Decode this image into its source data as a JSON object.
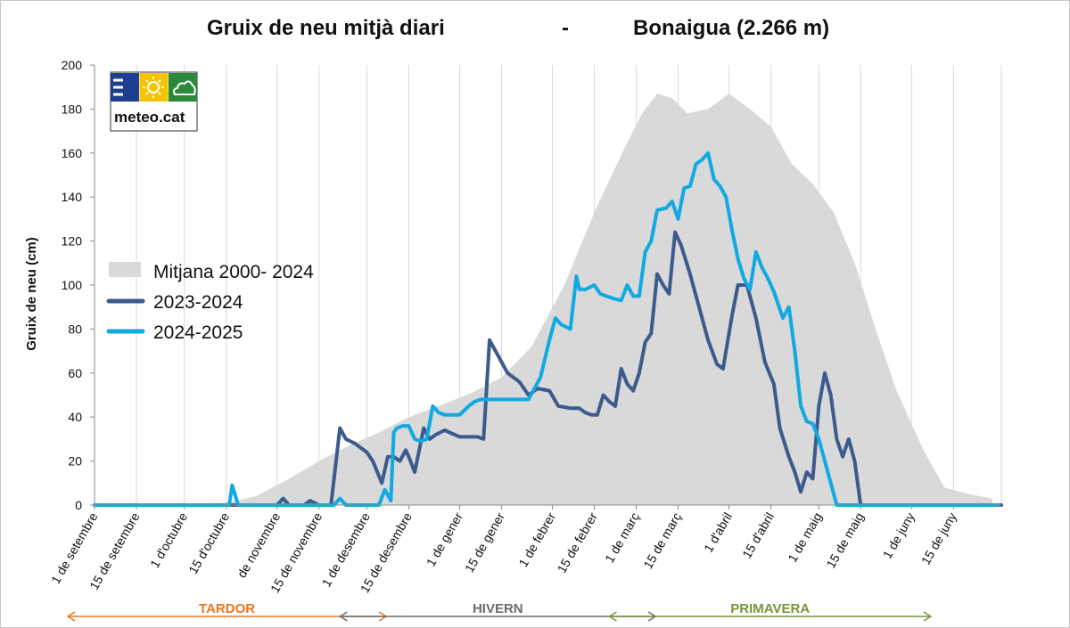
{
  "chart_data": {
    "type": "line",
    "title_left": "Gruix de neu mitjà diari",
    "title_sep": "-",
    "title_right": "Bonaigua (2.266 m)",
    "ylabel": "Gruix de neu (cm)",
    "ylim": [
      0,
      200
    ],
    "yticks": [
      "0",
      "20",
      "40",
      "60",
      "80",
      "100",
      "120",
      "140",
      "160",
      "180",
      "200"
    ],
    "x_start": "1 de setembre",
    "x_end": "30 de juny",
    "xticks": [
      "1 de setembre",
      "15 de setembre",
      "1 d'octubre",
      "15 d'octubre",
      "de novembre",
      "15 de novembre",
      "1 de desembre",
      "15 de desembre",
      "1 de gener",
      "15 de gener",
      "1 de febrer",
      "15 de febrer",
      "1 de març",
      "15 de març",
      "1 d'abril",
      "15 d'abril",
      "1 de maig",
      "15 de maig",
      "1 de juny",
      "15 de juny"
    ],
    "grid": "vertical",
    "legend_position": "left",
    "series": [
      {
        "name": "Mitjana  2000- 2024",
        "kind": "area",
        "color": "#d9d9d9",
        "x": [
          "2000-09-01",
          "2000-10-15",
          "2000-10-25",
          "2000-11-05",
          "2000-11-15",
          "2000-11-25",
          "2000-12-05",
          "2000-12-15",
          "2000-12-25",
          "2001-01-05",
          "2001-01-15",
          "2001-01-25",
          "2001-02-05",
          "2001-02-15",
          "2001-02-25",
          "2001-03-03",
          "2001-03-08",
          "2001-03-13",
          "2001-03-18",
          "2001-03-25",
          "2001-04-01",
          "2001-04-08",
          "2001-04-15",
          "2001-04-22",
          "2001-04-29",
          "2001-05-06",
          "2001-05-13",
          "2001-05-20",
          "2001-05-27",
          "2001-06-05",
          "2001-06-12",
          "2001-06-20",
          "2001-06-28"
        ],
        "values": [
          0,
          1,
          4,
          12,
          20,
          27,
          33,
          40,
          45,
          51,
          58,
          72,
          100,
          133,
          162,
          178,
          187,
          185,
          178,
          180,
          187,
          180,
          172,
          155,
          146,
          133,
          110,
          80,
          52,
          25,
          8,
          5,
          3
        ]
      },
      {
        "name": "2023-2024",
        "kind": "line",
        "color": "#3b5b8c",
        "x": [
          "2023-09-01",
          "2023-11-01",
          "2023-11-03",
          "2023-11-05",
          "2023-11-10",
          "2023-11-12",
          "2023-11-15",
          "2023-11-17",
          "2023-11-19",
          "2023-11-22",
          "2023-11-24",
          "2023-11-27",
          "2023-11-29",
          "2023-12-01",
          "2023-12-03",
          "2023-12-06",
          "2023-12-08",
          "2023-12-10",
          "2023-12-12",
          "2023-12-14",
          "2023-12-15",
          "2023-12-17",
          "2023-12-20",
          "2023-12-22",
          "2023-12-24",
          "2023-12-27",
          "2024-01-01",
          "2024-01-04",
          "2024-01-06",
          "2024-01-07",
          "2024-01-09",
          "2024-01-11",
          "2024-01-13",
          "2024-01-15",
          "2024-01-17",
          "2024-01-19",
          "2024-01-21",
          "2024-01-24",
          "2024-01-27",
          "2024-01-31",
          "2024-02-03",
          "2024-02-07",
          "2024-02-10",
          "2024-02-12",
          "2024-02-14",
          "2024-02-16",
          "2024-02-18",
          "2024-02-20",
          "2024-02-22",
          "2024-02-24",
          "2024-02-26",
          "2024-02-28",
          "2024-03-01",
          "2024-03-03",
          "2024-03-05",
          "2024-03-07",
          "2024-03-09",
          "2024-03-11",
          "2024-03-13",
          "2024-03-15",
          "2024-03-18",
          "2024-03-21",
          "2024-03-24",
          "2024-03-27",
          "2024-03-29",
          "2024-04-01",
          "2024-04-03",
          "2024-04-06",
          "2024-04-09",
          "2024-04-12",
          "2024-04-15",
          "2024-04-17",
          "2024-04-20",
          "2024-04-22",
          "2024-04-24",
          "2024-04-26",
          "2024-04-28",
          "2024-04-30",
          "2024-05-02",
          "2024-05-04",
          "2024-05-06",
          "2024-05-08",
          "2024-05-10",
          "2024-05-12",
          "2024-05-14",
          "2024-05-16",
          "2024-05-18",
          "2024-06-30"
        ],
        "values": [
          0,
          0,
          3,
          0,
          0,
          2,
          0,
          0,
          0,
          35,
          30,
          28,
          26,
          24,
          20,
          10,
          22,
          22,
          20,
          25,
          22,
          15,
          35,
          30,
          32,
          34,
          31,
          31,
          31,
          31,
          30,
          75,
          70,
          65,
          60,
          58,
          56,
          50,
          53,
          52,
          45,
          44,
          44,
          42,
          41,
          41,
          50,
          47,
          45,
          62,
          55,
          52,
          60,
          74,
          78,
          105,
          100,
          96,
          124,
          118,
          105,
          90,
          75,
          64,
          62,
          86,
          100,
          100,
          85,
          65,
          55,
          35,
          22,
          15,
          6,
          15,
          12,
          45,
          60,
          50,
          30,
          22,
          30,
          20,
          0,
          0,
          0,
          0
        ]
      },
      {
        "name": "2024-2025",
        "kind": "line",
        "color": "#11a9e2",
        "x": [
          "2024-09-01",
          "2024-10-16",
          "2024-10-17",
          "2024-10-19",
          "2024-11-20",
          "2024-11-22",
          "2024-11-24",
          "2024-12-05",
          "2024-12-07",
          "2024-12-09",
          "2024-12-10",
          "2024-12-11",
          "2024-12-13",
          "2024-12-15",
          "2024-12-17",
          "2024-12-19",
          "2024-12-21",
          "2024-12-23",
          "2024-12-25",
          "2024-12-27",
          "2024-12-30",
          "2025-01-01",
          "2025-01-04",
          "2025-01-06",
          "2025-01-08",
          "2025-01-12",
          "2025-01-15",
          "2025-01-19",
          "2025-01-24",
          "2025-01-28",
          "2025-01-31",
          "2025-02-02",
          "2025-02-04",
          "2025-02-07",
          "2025-02-09",
          "2025-02-10",
          "2025-02-12",
          "2025-02-15",
          "2025-02-17",
          "2025-02-19",
          "2025-02-21",
          "2025-02-24",
          "2025-02-26",
          "2025-02-28",
          "2025-03-02",
          "2025-03-04",
          "2025-03-06",
          "2025-03-08",
          "2025-03-11",
          "2025-03-13",
          "2025-03-15",
          "2025-03-17",
          "2025-03-19",
          "2025-03-21",
          "2025-03-23",
          "2025-03-25",
          "2025-03-27",
          "2025-03-29",
          "2025-03-31",
          "2025-04-02",
          "2025-04-04",
          "2025-04-06",
          "2025-04-08",
          "2025-04-10",
          "2025-04-12",
          "2025-04-14",
          "2025-04-16",
          "2025-04-17",
          "2025-04-19",
          "2025-04-21",
          "2025-04-23",
          "2025-04-25",
          "2025-04-27",
          "2025-04-29",
          "2025-05-01",
          "2025-05-03",
          "2025-05-05",
          "2025-05-07",
          "2025-05-09",
          "2025-05-11",
          "2025-05-13",
          "2025-05-14",
          "2025-05-16",
          "2025-06-30"
        ],
        "values": [
          0,
          0,
          9,
          0,
          0,
          3,
          0,
          0,
          7,
          2,
          33,
          35,
          36,
          36,
          30,
          29,
          30,
          45,
          42,
          41,
          41,
          41,
          45,
          47,
          48,
          48,
          48,
          48,
          48,
          58,
          75,
          85,
          82,
          80,
          104,
          98,
          98,
          100,
          96,
          95,
          94,
          93,
          100,
          95,
          95,
          115,
          120,
          134,
          135,
          138,
          130,
          144,
          145,
          155,
          157,
          160,
          148,
          145,
          140,
          125,
          112,
          103,
          98,
          115,
          108,
          103,
          97,
          93,
          85,
          90,
          70,
          45,
          38,
          37,
          30,
          20,
          10,
          0,
          0,
          0,
          0,
          0,
          0,
          0
        ]
      }
    ],
    "seasons": [
      {
        "label": "TARDOR",
        "color": "#e9751f",
        "from": "2000-09-01",
        "to": "2000-11-30"
      },
      {
        "label": "HIVERN",
        "color": "#6b6b6b",
        "from": "2000-12-01",
        "to": "2001-02-28"
      },
      {
        "label": "PRIMAVERA",
        "color": "#77933c",
        "from": "2001-03-01",
        "to": "2001-05-31"
      }
    ]
  },
  "logo": {
    "text": "meteo.cat",
    "colors": {
      "blue": "#1e3f8f",
      "yellow": "#f5c400",
      "green": "#2a8a3a"
    }
  }
}
